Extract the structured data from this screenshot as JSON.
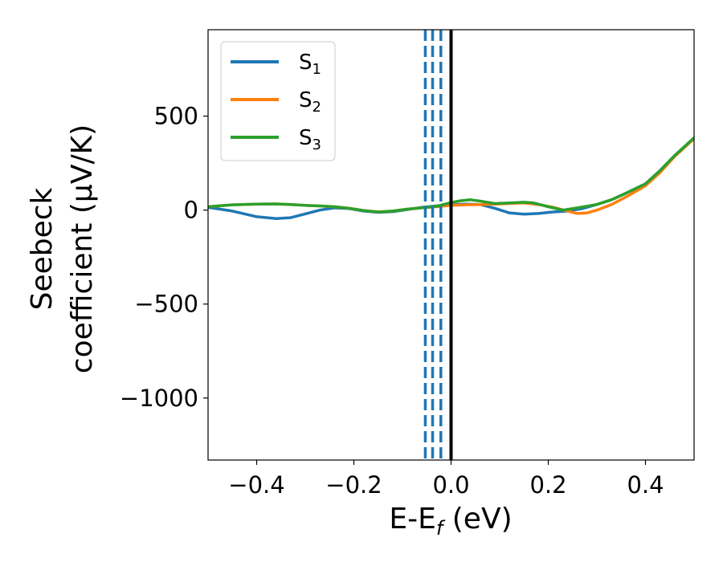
{
  "chart_data": {
    "type": "line",
    "xlabel": "E-E",
    "xlabel_sub": "f",
    "xlabel_unit": " (eV)",
    "ylabel_line1": "Seebeck",
    "ylabel_line2": "coefficient  (μV/K)",
    "xlim": [
      -0.5,
      0.5
    ],
    "ylim": [
      -1330,
      960
    ],
    "x_ticks": [
      -0.4,
      -0.2,
      0.0,
      0.2,
      0.4
    ],
    "x_tick_labels": [
      "−0.4",
      "−0.2",
      "0.0",
      "0.2",
      "0.4"
    ],
    "y_ticks": [
      500,
      0,
      -500,
      -1000
    ],
    "y_tick_labels": [
      "500",
      "0",
      "−500",
      "−1000"
    ],
    "legend_position": "top-left",
    "series": [
      {
        "name": "S",
        "sub": "1",
        "color": "#1f77b4",
        "x": [
          -0.5,
          -0.45,
          -0.4,
          -0.36,
          -0.33,
          -0.3,
          -0.27,
          -0.24,
          -0.21,
          -0.18,
          -0.15,
          -0.12,
          -0.09,
          -0.06,
          -0.03,
          0.0,
          0.03,
          0.06,
          0.09,
          0.12,
          0.15,
          0.18,
          0.21,
          0.24,
          0.27,
          0.3,
          0.33,
          0.36,
          0.4,
          0.43,
          0.46,
          0.5
        ],
        "y": [
          15,
          -5,
          -35,
          -45,
          -40,
          -20,
          0,
          12,
          8,
          -5,
          -12,
          -8,
          3,
          15,
          22,
          28,
          32,
          30,
          10,
          -15,
          -22,
          -18,
          -10,
          -5,
          8,
          30,
          55,
          90,
          140,
          210,
          290,
          380
        ]
      },
      {
        "name": "S",
        "sub": "2",
        "color": "#ff7f0e",
        "x": [
          -0.5,
          -0.45,
          -0.4,
          -0.36,
          -0.33,
          -0.3,
          -0.27,
          -0.24,
          -0.21,
          -0.18,
          -0.15,
          -0.12,
          -0.09,
          -0.06,
          -0.03,
          0.0,
          0.03,
          0.06,
          0.09,
          0.12,
          0.15,
          0.18,
          0.21,
          0.24,
          0.26,
          0.28,
          0.3,
          0.33,
          0.36,
          0.4,
          0.43,
          0.46,
          0.5
        ],
        "y": [
          18,
          28,
          32,
          33,
          30,
          25,
          22,
          18,
          10,
          -2,
          -10,
          -5,
          5,
          12,
          18,
          25,
          28,
          30,
          32,
          35,
          38,
          30,
          15,
          -5,
          -18,
          -15,
          0,
          30,
          70,
          130,
          200,
          285,
          380
        ]
      },
      {
        "name": "S",
        "sub": "3",
        "color": "#2ca02c",
        "x": [
          -0.5,
          -0.45,
          -0.4,
          -0.36,
          -0.33,
          -0.3,
          -0.27,
          -0.24,
          -0.21,
          -0.18,
          -0.15,
          -0.12,
          -0.09,
          -0.06,
          -0.03,
          0.0,
          0.02,
          0.04,
          0.06,
          0.09,
          0.12,
          0.15,
          0.17,
          0.2,
          0.23,
          0.26,
          0.3,
          0.33,
          0.36,
          0.4,
          0.43,
          0.46,
          0.5
        ],
        "y": [
          18,
          28,
          32,
          33,
          30,
          25,
          22,
          18,
          10,
          -2,
          -10,
          -5,
          5,
          12,
          20,
          40,
          50,
          55,
          48,
          35,
          38,
          42,
          38,
          18,
          0,
          12,
          30,
          55,
          90,
          140,
          210,
          290,
          385
        ]
      }
    ],
    "vlines": [
      {
        "x": -0.053,
        "style": "dashed",
        "color": "#1f77b4"
      },
      {
        "x": -0.038,
        "style": "dashed",
        "color": "#1f77b4"
      },
      {
        "x": -0.021,
        "style": "dashed",
        "color": "#1f77b4"
      },
      {
        "x": 0.0,
        "style": "solid",
        "color": "#000000"
      }
    ]
  }
}
